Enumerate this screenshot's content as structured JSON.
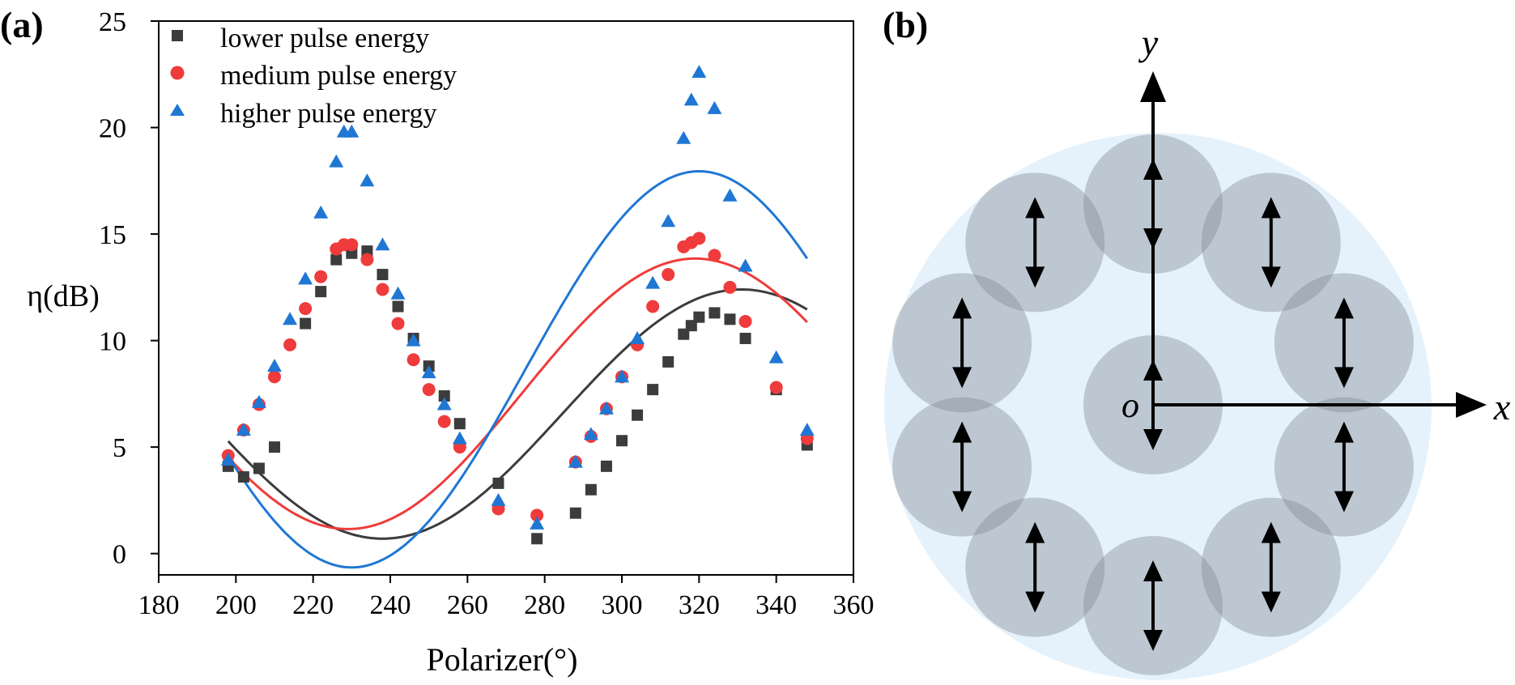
{
  "panel_a": {
    "label": "(a)",
    "ylabel": "η(dB)",
    "xlabel": "Polarizer(°)"
  },
  "panel_b": {
    "label": "(b)",
    "x_axis_label": "x",
    "y_axis_label": "y",
    "origin_label": "o"
  },
  "chart_data": {
    "type": "scatter",
    "xlabel": "Polarizer(°)",
    "ylabel": "η(dB)",
    "xlim": [
      180,
      360
    ],
    "ylim": [
      -1,
      25
    ],
    "xticks": [
      180,
      200,
      220,
      240,
      260,
      280,
      300,
      320,
      340,
      360
    ],
    "yticks": [
      0,
      5,
      10,
      15,
      20,
      25
    ],
    "legend_position": "top-left",
    "series": [
      {
        "name": "lower pulse energy",
        "marker": "square",
        "color": "#3c3c3c",
        "x": [
          198,
          202,
          206,
          210,
          218,
          222,
          226,
          230,
          234,
          238,
          242,
          246,
          250,
          254,
          258,
          268,
          278,
          288,
          292,
          296,
          300,
          304,
          308,
          312,
          316,
          318,
          320,
          324,
          328,
          332,
          340,
          348
        ],
        "y": [
          4.1,
          3.6,
          4.0,
          5.0,
          10.8,
          12.3,
          13.8,
          14.1,
          14.2,
          13.1,
          11.6,
          10.1,
          8.8,
          7.4,
          6.1,
          3.3,
          0.7,
          1.9,
          3.0,
          4.1,
          5.3,
          6.5,
          7.7,
          9.0,
          10.3,
          10.7,
          11.1,
          11.3,
          11.0,
          10.1,
          7.7,
          5.1
        ],
        "fit": {
          "amplitude": 5.85,
          "offset": 6.55,
          "phase_deg": 145,
          "period_deg": 186
        }
      },
      {
        "name": "medium pulse energy",
        "marker": "circle",
        "color": "#ef3b3b",
        "x": [
          198,
          202,
          206,
          210,
          214,
          218,
          222,
          226,
          228,
          230,
          234,
          238,
          242,
          246,
          250,
          254,
          258,
          268,
          278,
          288,
          292,
          296,
          300,
          304,
          308,
          312,
          316,
          318,
          320,
          324,
          328,
          332,
          340,
          348
        ],
        "y": [
          4.6,
          5.8,
          7.0,
          8.3,
          9.8,
          11.5,
          13.0,
          14.3,
          14.5,
          14.5,
          13.8,
          12.4,
          10.8,
          9.1,
          7.7,
          6.2,
          5.0,
          2.1,
          1.8,
          4.3,
          5.5,
          6.8,
          8.3,
          9.8,
          11.6,
          13.1,
          14.4,
          14.6,
          14.8,
          14.0,
          12.5,
          10.9,
          7.8,
          5.4
        ],
        "fit": {
          "amplitude": 6.35,
          "offset": 7.5,
          "phase_deg": 139,
          "period_deg": 180
        }
      },
      {
        "name": "higher pulse energy",
        "marker": "triangle",
        "color": "#1f77d4",
        "x": [
          198,
          202,
          206,
          210,
          214,
          218,
          222,
          226,
          228,
          230,
          234,
          238,
          242,
          246,
          250,
          254,
          258,
          268,
          278,
          288,
          292,
          296,
          300,
          304,
          308,
          312,
          316,
          318,
          320,
          324,
          328,
          332,
          340,
          348
        ],
        "y": [
          4.4,
          5.8,
          7.1,
          8.8,
          11.0,
          12.9,
          16.0,
          18.4,
          19.8,
          19.8,
          17.5,
          14.5,
          12.2,
          10.0,
          8.5,
          7.0,
          5.4,
          2.5,
          1.4,
          4.3,
          5.6,
          6.8,
          8.3,
          10.1,
          12.7,
          15.6,
          19.5,
          21.3,
          22.6,
          20.9,
          16.8,
          13.5,
          9.2,
          5.8
        ],
        "fit": {
          "amplitude": 9.3,
          "offset": 8.65,
          "phase_deg": 140,
          "period_deg": 180
        }
      }
    ]
  }
}
